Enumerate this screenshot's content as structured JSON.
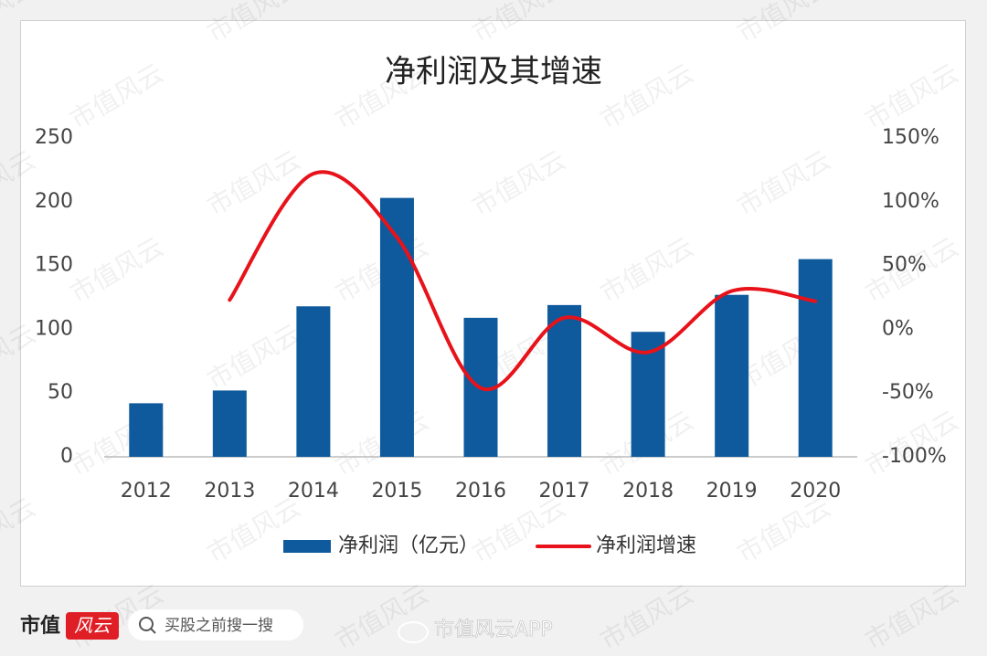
{
  "chart_data": {
    "type": "bar_line",
    "title": "净利润及其增速",
    "categories": [
      "2012",
      "2013",
      "2014",
      "2015",
      "2016",
      "2017",
      "2018",
      "2019",
      "2020"
    ],
    "series": [
      {
        "name": "净利润（亿元）",
        "type": "bar",
        "color": "#0f5a9c",
        "values": [
          42,
          52,
          118,
          203,
          109,
          119,
          98,
          127,
          155
        ]
      },
      {
        "name": "净利润增速",
        "type": "line",
        "axis": "y2",
        "color": "#e8121a",
        "smooth": true,
        "values": [
          null,
          23,
          122,
          72,
          -46,
          9,
          -18,
          30,
          22
        ]
      }
    ],
    "ylim": [
      0,
      250
    ],
    "yticks": [
      0,
      50,
      100,
      150,
      200,
      250
    ],
    "y2lim": [
      -100,
      150
    ],
    "y2ticks": [
      {
        "value": -100,
        "label": "-100%"
      },
      {
        "value": -50,
        "label": "-50%"
      },
      {
        "value": 0,
        "label": "0%"
      },
      {
        "value": 50,
        "label": "50%"
      },
      {
        "value": 100,
        "label": "100%"
      },
      {
        "value": 150,
        "label": "150%"
      }
    ],
    "grid": false,
    "legend": "bottom"
  },
  "footer": {
    "brand": "市值",
    "brand_mark": "风云",
    "search": "买股之前搜一搜",
    "source": "市值风云APP"
  },
  "watermark": "市值风云"
}
